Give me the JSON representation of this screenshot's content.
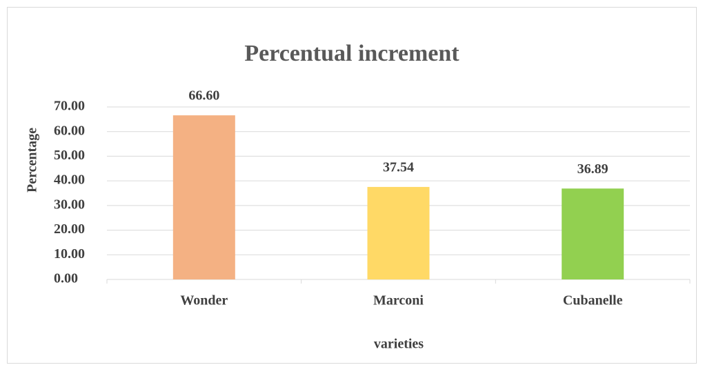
{
  "chart_data": {
    "type": "bar",
    "title": "Percentual increment",
    "x_label": "varieties",
    "y_label": "Percentage",
    "categories": [
      "Wonder",
      "Marconi",
      "Cubanelle"
    ],
    "values": [
      66.6,
      37.54,
      36.89
    ],
    "value_labels": [
      "66.60",
      "37.54",
      "36.89"
    ],
    "colors": [
      "#f4b183",
      "#ffd966",
      "#92d050"
    ],
    "ylim": [
      0,
      70
    ],
    "yticks": [
      {
        "value": 0,
        "label": "0.00"
      },
      {
        "value": 10,
        "label": "10.00"
      },
      {
        "value": 20,
        "label": "20.00"
      },
      {
        "value": 30,
        "label": "30.00"
      },
      {
        "value": 40,
        "label": "40.00"
      },
      {
        "value": 50,
        "label": "50.00"
      },
      {
        "value": 60,
        "label": "60.00"
      },
      {
        "value": 70,
        "label": "70.00"
      }
    ],
    "grid": true
  }
}
